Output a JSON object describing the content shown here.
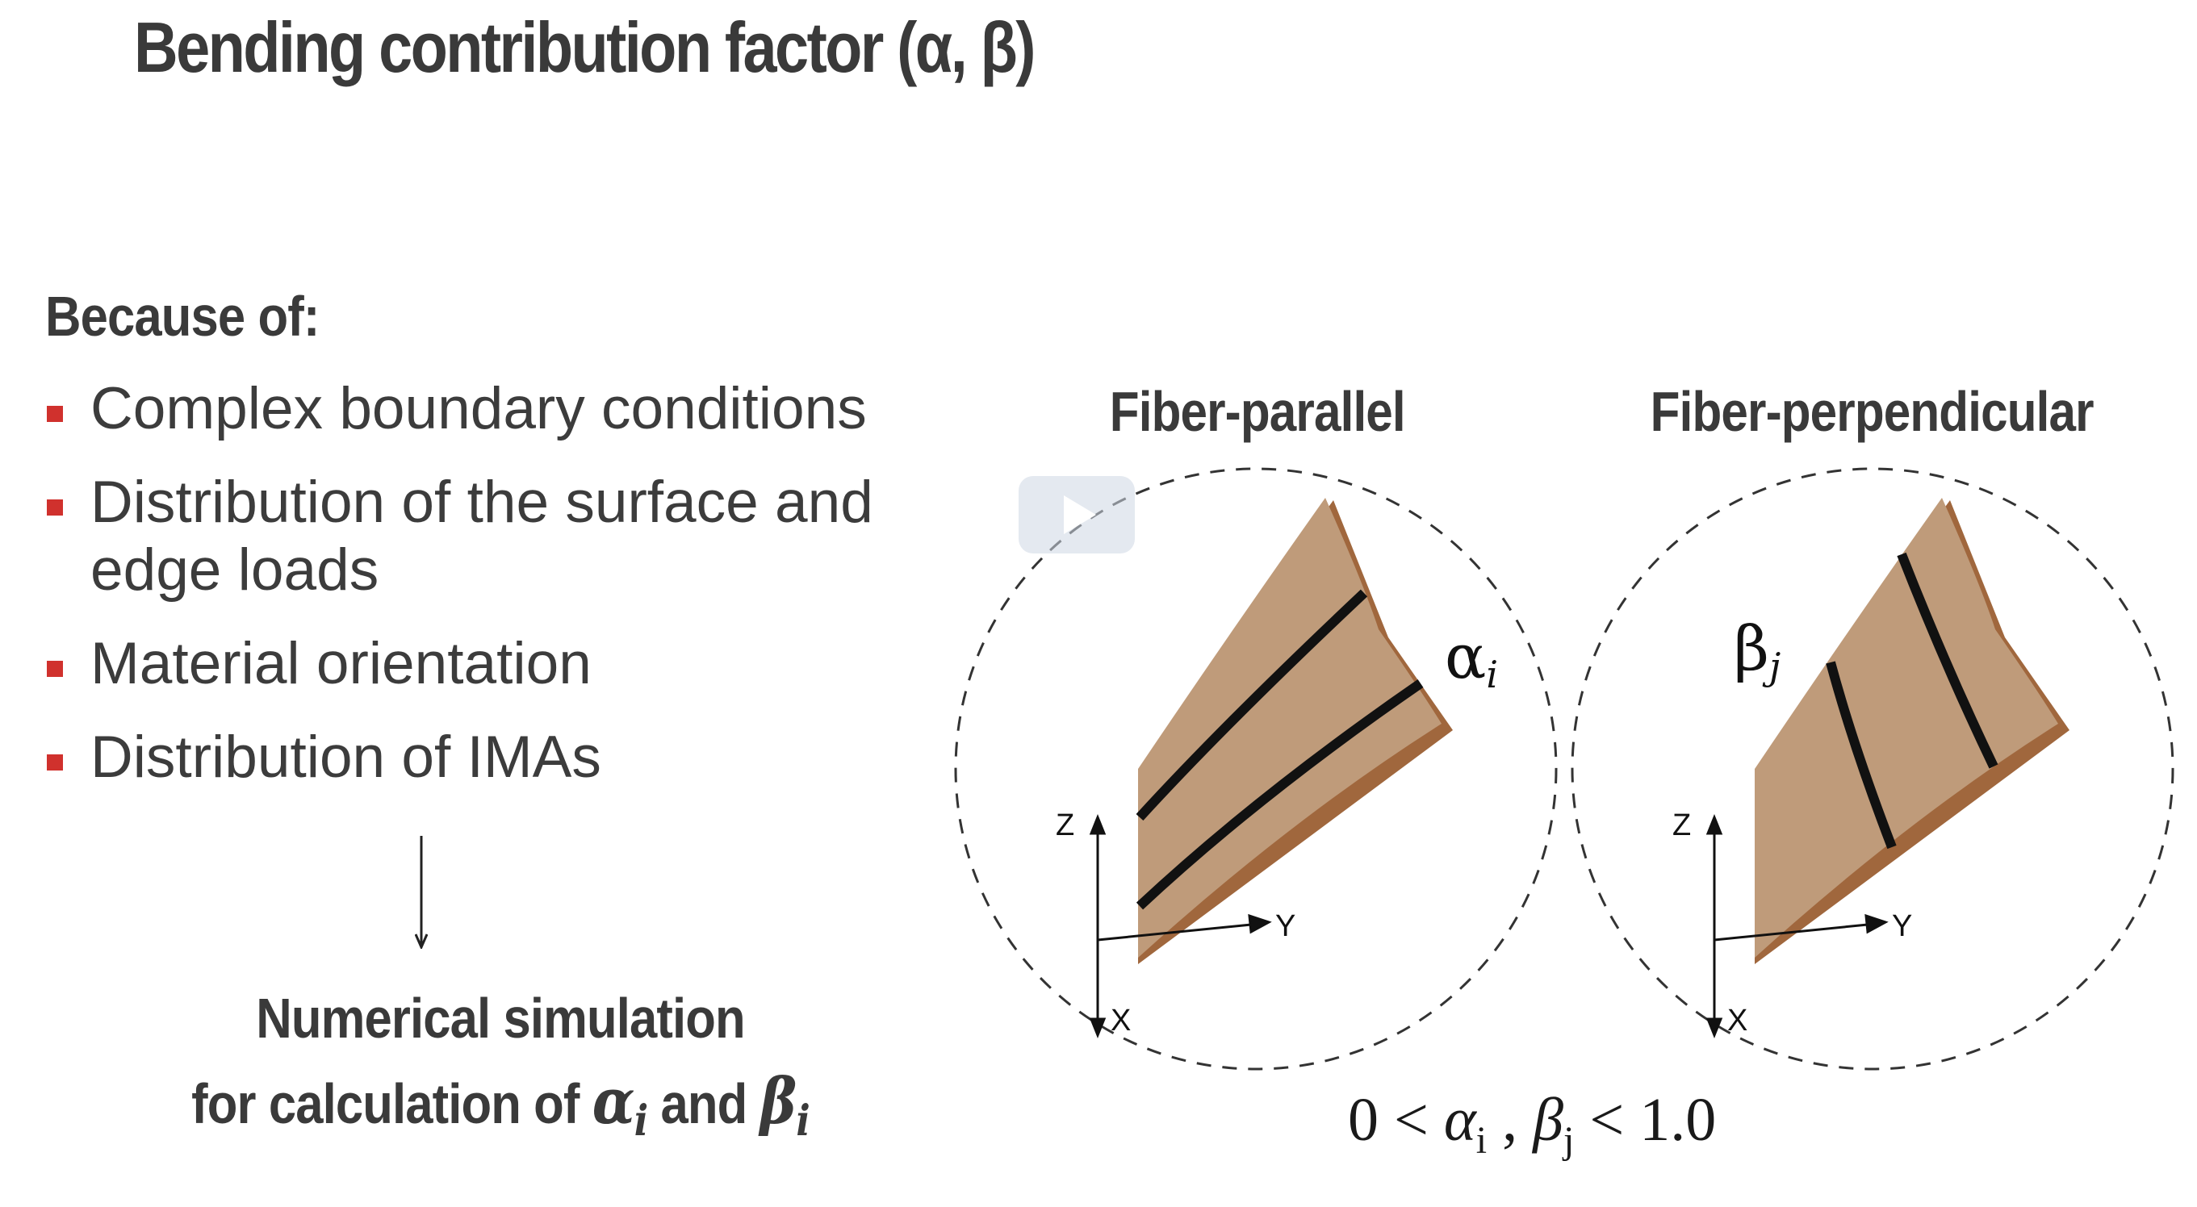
{
  "title": "Bending contribution factor (α, β)",
  "because_label": "Because of:",
  "bullets": [
    {
      "text": "Complex boundary conditions"
    },
    {
      "text": "Distribution of the surface and edge loads"
    },
    {
      "text": "Material orientation"
    },
    {
      "text": "Distribution of IMAs"
    }
  ],
  "numerical_simulation": {
    "line1": "Numerical simulation",
    "line2_prefix": "for calculation of ",
    "alpha_symbol": "α",
    "alpha_sub": "i",
    "and_word": " and ",
    "beta_symbol": "β",
    "beta_sub": "i"
  },
  "panels": {
    "left_title": "Fiber-parallel",
    "right_title": "Fiber-perpendicular",
    "left_label_symbol": "α",
    "left_label_sub": "i",
    "right_label_symbol": "β",
    "right_label_sub": "j",
    "axis_z": "Z",
    "axis_y": "Y",
    "axis_x": "X"
  },
  "inequality": {
    "lhs": "0 < ",
    "alpha": "α",
    "alpha_sub": "i",
    "comma": " , ",
    "beta": "β",
    "beta_sub": "j",
    "rhs": " < 1.0"
  },
  "colors": {
    "bullet_red": "#d0312d",
    "panel_fill": "#bf9b7a",
    "panel_edge": "#a0673d",
    "fiber_line": "#111111"
  },
  "icons": {
    "play": "play-icon",
    "arrow": "down-arrow-icon"
  }
}
